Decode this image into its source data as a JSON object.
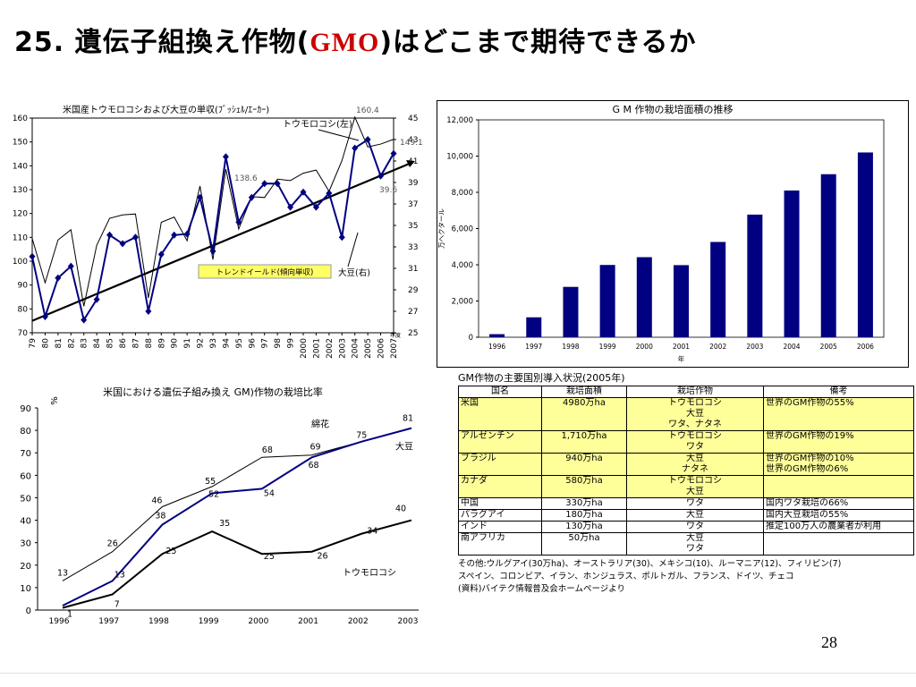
{
  "slide": {
    "title_prefix": "25. 遺伝子組換え作物(",
    "title_gmo": "GMO",
    "title_suffix": ")はどこまで期待できるか",
    "page_number": "28"
  },
  "chart_data": [
    {
      "type": "line",
      "title": "米国産トウモロコシおよび大豆の単収(ﾌﾞｯｼｪﾙ/ｴｰｶｰ)",
      "x": [
        "79",
        "80",
        "81",
        "82",
        "83",
        "84",
        "85",
        "86",
        "87",
        "88",
        "89",
        "90",
        "91",
        "92",
        "93",
        "94",
        "95",
        "96",
        "97",
        "98",
        "99",
        "2000",
        "2001",
        "2002",
        "2003",
        "2004",
        "2005",
        "2006",
        "2007"
      ],
      "x_unit": "年度",
      "ylim_left": [
        70,
        160
      ],
      "yticks_left": [
        70,
        80,
        90,
        100,
        110,
        120,
        130,
        140,
        150,
        160
      ],
      "ylim_right": [
        25,
        45
      ],
      "yticks_right": [
        25,
        27,
        29,
        31,
        33,
        35,
        37,
        39,
        41,
        43,
        45
      ],
      "series": [
        {
          "name": "トウモロコシ(左)",
          "axis": "left",
          "color": "#000000",
          "values": [
            109.5,
            91,
            108.9,
            113.2,
            81.1,
            106.7,
            118,
            119.4,
            119.8,
            84.6,
            116.3,
            118.5,
            108.6,
            131.5,
            100.7,
            138.6,
            113.5,
            127.1,
            126.7,
            134.4,
            133.8,
            136.9,
            138.2,
            129.3,
            142.2,
            160.4,
            147.9,
            149.1,
            151.1
          ]
        },
        {
          "name": "大豆(右)",
          "axis": "right",
          "color": "#000080",
          "values": [
            32.1,
            26.5,
            30.1,
            31.2,
            26.2,
            28.1,
            34.1,
            33.3,
            33.9,
            27.0,
            32.3,
            34.1,
            34.2,
            37.6,
            32.6,
            41.4,
            35.3,
            37.6,
            38.9,
            38.9,
            36.7,
            38.1,
            36.7,
            38.0,
            33.9,
            42.2,
            43.0,
            39.6,
            41.7
          ]
        }
      ],
      "annotations": {
        "trend_label": "トレンドイールド(傾向単収)",
        "corn_label": "トウモロコシ(左)",
        "soy_label": "大豆(右)",
        "corn_2004": "160.4",
        "corn_1994": "138.6",
        "corn_2006": "149.1",
        "soy_2006": "39.6"
      }
    },
    {
      "type": "bar",
      "title": "G M 作物の栽培面積の推移",
      "categories": [
        "1996",
        "1997",
        "1998",
        "1999",
        "2000",
        "2001",
        "2002",
        "2003",
        "2004",
        "2005",
        "2006"
      ],
      "values": [
        170,
        1100,
        2780,
        3990,
        4420,
        3980,
        5260,
        6770,
        8100,
        9000,
        10200
      ],
      "ylabel": "万ヘクタール",
      "xlabel": "年",
      "ylim": [
        0,
        12000
      ],
      "yticks": [
        "0",
        "2,000",
        "4,000",
        "6,000",
        "8,000",
        "10,000",
        "12,000"
      ],
      "bar_color": "#000080"
    },
    {
      "type": "line",
      "title": "米国における遺伝子組み換え GM)作物の栽培比率",
      "ylabel": "%",
      "x": [
        "1996",
        "1997",
        "1998",
        "1999",
        "2000",
        "2001",
        "2002",
        "2003"
      ],
      "ylim": [
        0,
        90
      ],
      "yticks": [
        0,
        10,
        20,
        30,
        40,
        50,
        60,
        70,
        80,
        90
      ],
      "series": [
        {
          "name": "綿花",
          "color": "#000000",
          "values": [
            13,
            26,
            46,
            55,
            68,
            69,
            75,
            81
          ]
        },
        {
          "name": "大豆",
          "color": "#000080",
          "values": [
            2,
            13,
            38,
            52,
            54,
            68,
            75,
            81
          ]
        },
        {
          "name": "トウモロコシ",
          "color": "#000000",
          "values": [
            1,
            7,
            25,
            35,
            25,
            26,
            34,
            40
          ]
        }
      ],
      "point_labels": {
        "cotton": [
          "13",
          "26",
          "46",
          "55",
          "68",
          "69",
          "75",
          "81"
        ],
        "soy": [
          "",
          "13",
          "38",
          "52",
          "54",
          "68",
          "",
          ""
        ],
        "corn": [
          "1",
          "7",
          "25",
          "35",
          "25",
          "26",
          "34",
          "40"
        ]
      }
    }
  ],
  "table": {
    "title": "GM作物の主要国別導入状況(2005年)",
    "headers": [
      "国名",
      "栽培面積",
      "栽培作物",
      "備考"
    ],
    "rows": [
      {
        "highlight": true,
        "country": "米国",
        "area": "4980万ha",
        "crops": "トウモロコシ\n大豆\nワタ、ナタネ",
        "note": "世界のGM作物の55%"
      },
      {
        "highlight": true,
        "country": "アルゼンチン",
        "area": "1,710万ha",
        "crops": "トウモロコシ\nワタ",
        "note": "世界のGM作物の19%"
      },
      {
        "highlight": true,
        "country": "ブラジル",
        "area": "940万ha",
        "crops": "大豆\nナタネ",
        "note": "世界のGM作物の10%\n世界のGM作物の6%"
      },
      {
        "highlight": true,
        "country": "カナダ",
        "area": "580万ha",
        "crops": "トウモロコシ\n大豆",
        "note": ""
      },
      {
        "highlight": false,
        "country": "中国",
        "area": "330万ha",
        "crops": "ワタ",
        "note": "国内ワタ栽培の66%"
      },
      {
        "highlight": false,
        "country": "パラグアイ",
        "area": "180万ha",
        "crops": "大豆",
        "note": "国内大豆栽培の55%"
      },
      {
        "highlight": false,
        "country": "インド",
        "area": "130万ha",
        "crops": "ワタ",
        "note": "推定100万人の農業者が利用"
      },
      {
        "highlight": false,
        "country": "南アフリカ",
        "area": "50万ha",
        "crops": "大豆\nワタ",
        "note": ""
      }
    ],
    "note_others": "その他:ウルグアイ(30万ha)、オーストラリア(30)、メキシコ(10)、ルーマニア(12)、フィリピン(7)",
    "note_others2": "スペイン、コロンビア、イラン、ホンジュラス、ポルトガル、フランス、ドイツ、チェコ",
    "note_source": "(資料)バイテク情報普及会ホームページより"
  }
}
